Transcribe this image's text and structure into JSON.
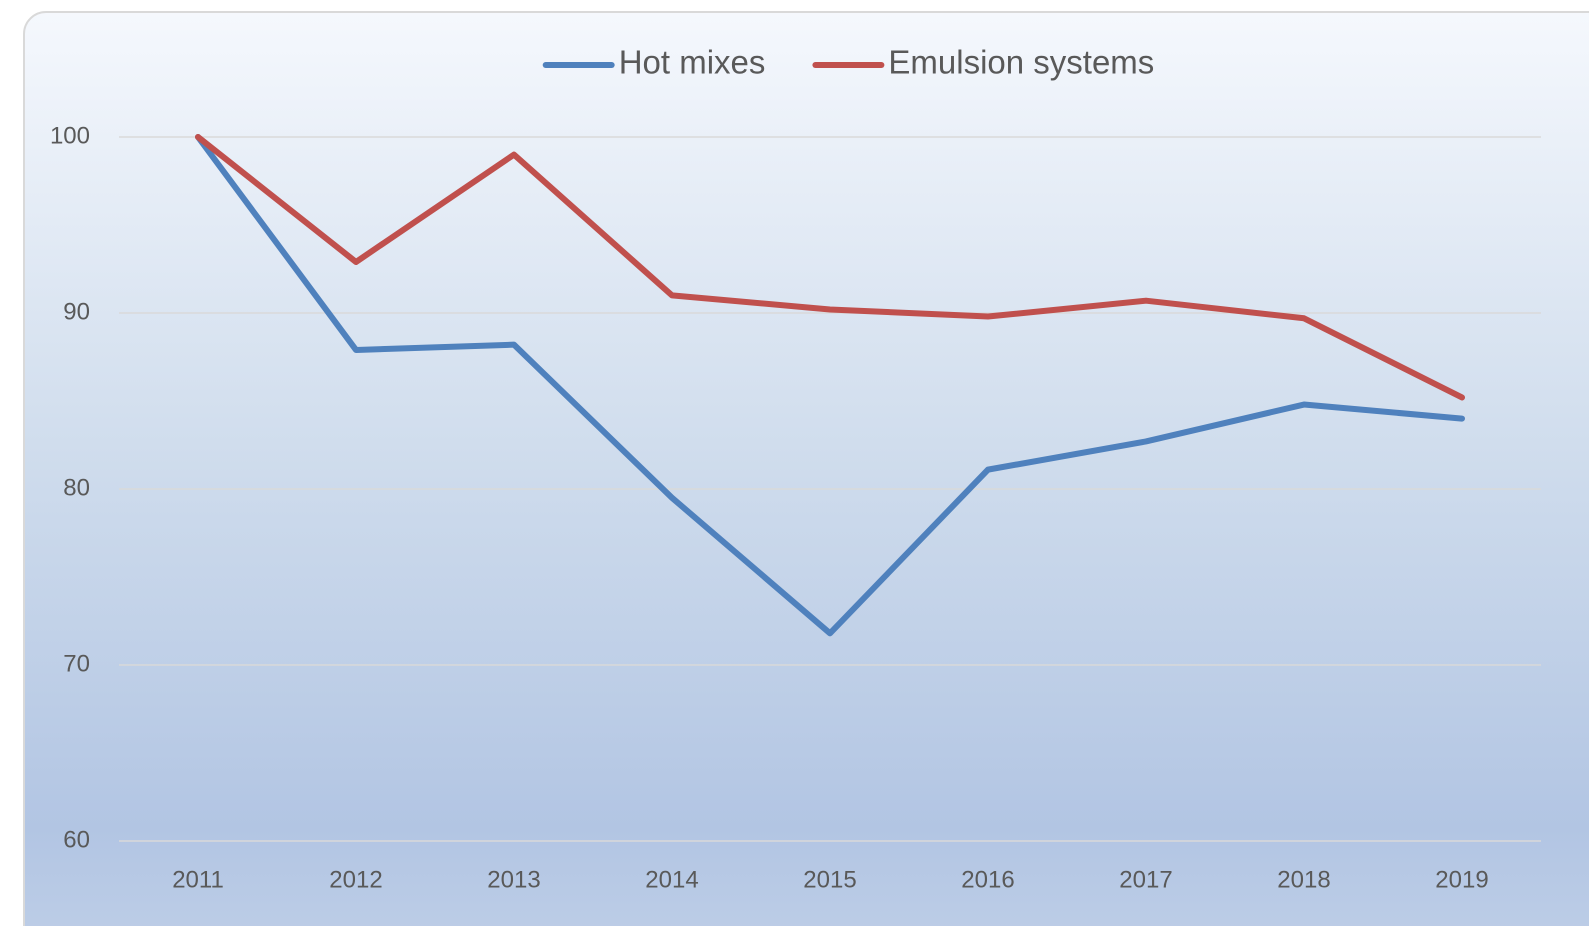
{
  "chart_data": {
    "type": "line",
    "categories": [
      "2011",
      "2012",
      "2013",
      "2014",
      "2015",
      "2016",
      "2017",
      "2018",
      "2019"
    ],
    "series": [
      {
        "name": "Hot mixes",
        "color": "#4f81bd",
        "values": [
          100,
          87.9,
          88.2,
          79.5,
          71.8,
          81.1,
          82.7,
          84.8,
          84.0
        ]
      },
      {
        "name": "Emulsion systems",
        "color": "#c0504d",
        "values": [
          100,
          92.9,
          99.0,
          91.0,
          90.2,
          89.8,
          90.7,
          89.7,
          85.2
        ]
      }
    ],
    "ylim": [
      60,
      100
    ],
    "yticks": [
      60,
      70,
      80,
      90,
      100
    ],
    "grid": true,
    "legend": "top"
  }
}
